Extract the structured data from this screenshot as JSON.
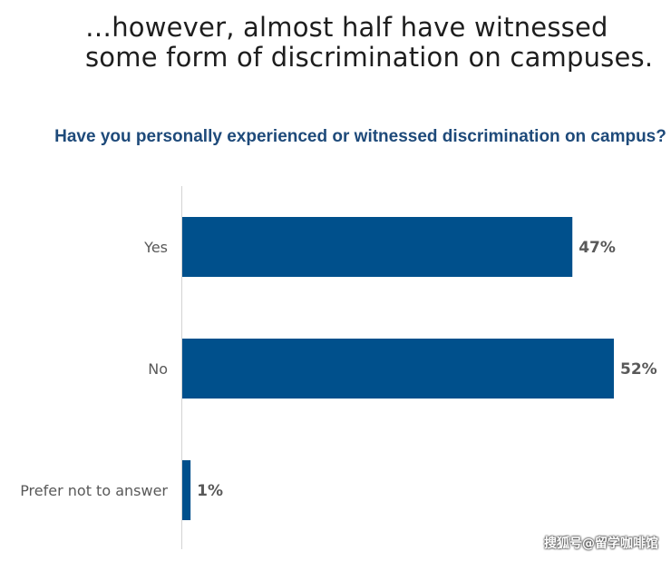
{
  "headline": {
    "line1": "…however, almost half have witnessed",
    "line2": "some form of discrimination on campuses."
  },
  "watermark": "搜狐号@留学咖啡馆",
  "colors": {
    "bar": "#00508c",
    "question": "#1e4a7a",
    "label": "#595959"
  },
  "chart_data": {
    "type": "bar",
    "orientation": "horizontal",
    "title": "Have you personally experienced or witnessed discrimination on campus?",
    "categories": [
      "Yes",
      "No",
      "Prefer not to answer"
    ],
    "values": [
      47,
      52,
      1
    ],
    "value_labels": [
      "47%",
      "52%",
      "1%"
    ],
    "xlim": [
      0,
      52
    ],
    "grid": false
  }
}
